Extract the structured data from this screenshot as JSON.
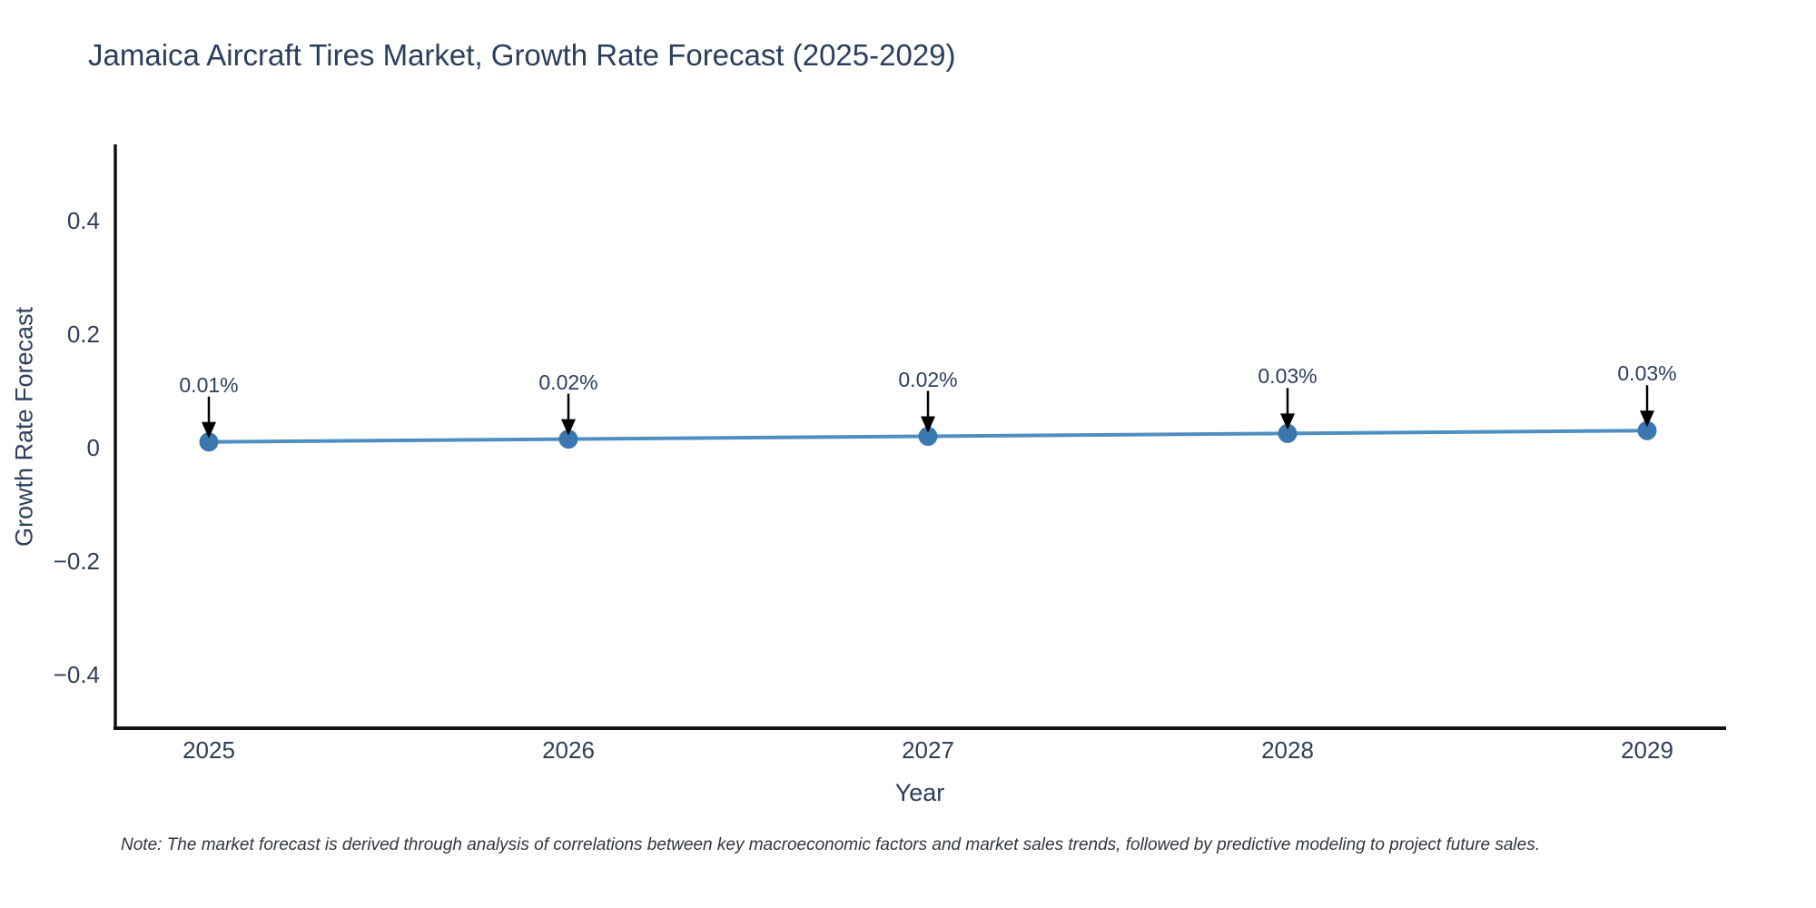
{
  "page": {
    "background": "#ffffff"
  },
  "chart_data": {
    "type": "line",
    "title": "Jamaica Aircraft Tires Market, Growth Rate Forecast (2025-2029)",
    "xlabel": "Year",
    "ylabel": "Growth Rate Forecast",
    "x": [
      "2025",
      "2026",
      "2027",
      "2028",
      "2029"
    ],
    "series": [
      {
        "name": "Growth Rate Forecast",
        "unit": "%",
        "values": [
          0.01,
          0.015,
          0.02,
          0.025,
          0.03
        ],
        "labels": [
          "0.01%",
          "0.02%",
          "0.02%",
          "0.03%",
          "0.03%"
        ]
      }
    ],
    "ylim": [
      -0.5,
      0.535
    ],
    "yticks": [
      {
        "value": 0.4,
        "label": "0.4"
      },
      {
        "value": 0.2,
        "label": "0.2"
      },
      {
        "value": 0,
        "label": "0"
      },
      {
        "value": -0.2,
        "label": "−0.2"
      },
      {
        "value": -0.4,
        "label": "−0.4"
      }
    ],
    "grid": false,
    "legend": "none",
    "annotation_style": "down-arrow-to-point",
    "colors": {
      "line": "#4e8fc0",
      "marker": "#3a77b0",
      "arrow": "#000000",
      "axis": "#111111",
      "text": "#2b3f5c"
    },
    "note": "Note: The market forecast is derived through analysis of correlations between key macroeconomic factors and market sales trends, followed by predictive modeling to project future sales."
  }
}
